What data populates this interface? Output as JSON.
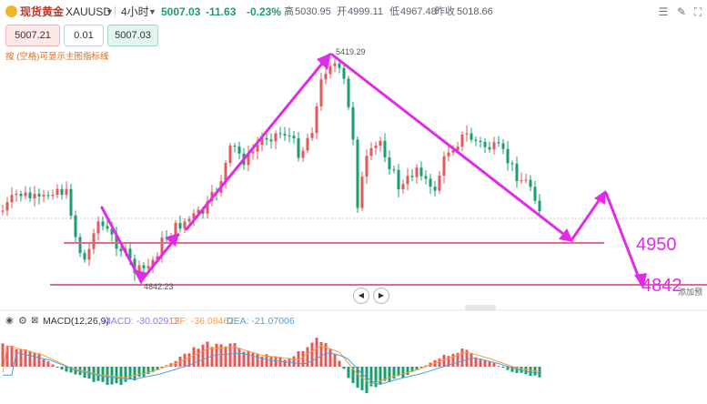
{
  "header": {
    "instrument": "现货黄金",
    "symbol": "XAUUSD",
    "timeframe": "4小时",
    "last_price": "5007.03",
    "change": "-11.63",
    "change_pct": "-0.23%",
    "high_label": "高",
    "high": "5030.95",
    "open_label": "开",
    "open": "4999.11",
    "low_label": "低",
    "low": "4967.48",
    "prev_close_label": "昨收",
    "prev_close": "5018.66"
  },
  "order_panel": {
    "sell_price": "5007.21",
    "quantity": "0.01",
    "buy_price": "5007.03",
    "hint": "按 (空格)可显示主图指标线"
  },
  "chart": {
    "peak_label": "5419.29",
    "trough_label": "4842.23",
    "level_4950": "4950",
    "level_4842": "4842",
    "edge_text": "添加预",
    "colors": {
      "up": "#e05a5a",
      "down": "#1a9e6d",
      "arrow": "#e22be8",
      "level": "#e06b8a"
    }
  },
  "indicator": {
    "label": "MACD(12,26,9)",
    "macd": "MACD: -30.02912",
    "dif": "DIF: -36.08462",
    "dea": "DEA: -21.07006",
    "colors": {
      "macd": "#8b7cf6",
      "dif": "#f59e42",
      "dea": "#4aa3df"
    }
  }
}
